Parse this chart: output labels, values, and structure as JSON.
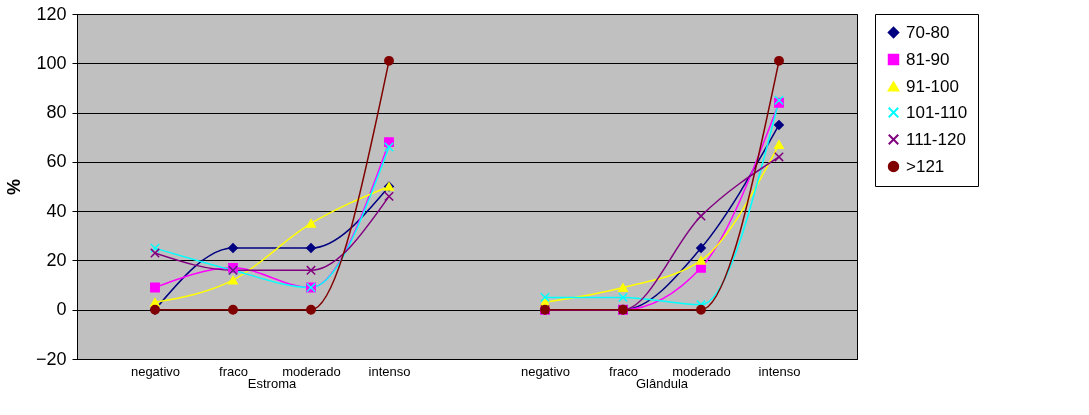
{
  "chart_data": {
    "type": "line",
    "ylabel": "%",
    "categories": [
      "negativo",
      "fraco",
      "moderado",
      "intenso",
      null,
      "negativo",
      "fraco",
      "moderado",
      "intenso"
    ],
    "annotations": [
      "Estroma",
      "Glândula"
    ],
    "ylim": [
      -20,
      120
    ],
    "yticks": [
      -20,
      0,
      20,
      40,
      60,
      80,
      100,
      120
    ],
    "grid": "y",
    "legend": "right",
    "series": [
      {
        "name": "70-80",
        "color": "#000080",
        "marker": "diamond",
        "values": [
          0,
          25,
          25,
          50,
          null,
          0,
          0,
          25,
          75
        ]
      },
      {
        "name": "81-90",
        "color": "#ff00ff",
        "marker": "square",
        "values": [
          9,
          17,
          9,
          68,
          null,
          0,
          0,
          17,
          84
        ]
      },
      {
        "name": "91-100",
        "color": "#ffff00",
        "marker": "triangle",
        "values": [
          3,
          12,
          35,
          50,
          null,
          3,
          9,
          20,
          67
        ]
      },
      {
        "name": "101-110",
        "color": "#00ffff",
        "marker": "cross",
        "values": [
          25,
          16,
          9,
          66,
          null,
          5,
          5,
          2,
          85
        ]
      },
      {
        "name": "111-120",
        "color": "#800080",
        "marker": "cross",
        "values": [
          23,
          16,
          16,
          46,
          null,
          0,
          0,
          38,
          62
        ]
      },
      {
        "name": ">121",
        "color": "#800000",
        "marker": "circle",
        "values": [
          0,
          0,
          0,
          101,
          null,
          0,
          0,
          0,
          101
        ]
      }
    ]
  }
}
